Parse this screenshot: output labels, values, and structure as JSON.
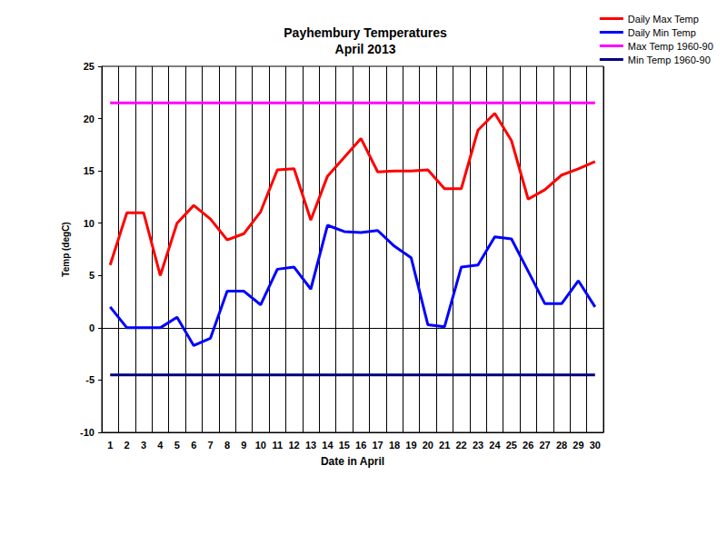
{
  "chart_data": {
    "type": "line",
    "title": "Payhembury Temperatures",
    "subtitle": "April 2013",
    "x_label": "Date in April",
    "y_label": "Temp (degC)",
    "categories": [
      "1",
      "2",
      "3",
      "4",
      "5",
      "6",
      "7",
      "8",
      "9",
      "10",
      "11",
      "12",
      "13",
      "14",
      "15",
      "16",
      "17",
      "18",
      "19",
      "20",
      "21",
      "22",
      "23",
      "24",
      "25",
      "26",
      "27",
      "28",
      "29",
      "30"
    ],
    "series": [
      {
        "name": "Daily Max Temp",
        "color": "#ff0000",
        "values": [
          6.0,
          11.0,
          11.0,
          5.0,
          10.0,
          11.7,
          10.4,
          8.4,
          9.0,
          11.1,
          15.1,
          15.2,
          10.3,
          14.5,
          16.3,
          18.1,
          14.9,
          15.0,
          15.0,
          15.1,
          13.3,
          13.3,
          18.9,
          20.5,
          17.9,
          12.3,
          13.2,
          14.6,
          15.2,
          15.9
        ]
      },
      {
        "name": "Daily Min Temp",
        "color": "#0000ff",
        "values": [
          2.0,
          0.0,
          0.0,
          0.0,
          1.0,
          -1.7,
          -1.0,
          3.5,
          3.5,
          2.2,
          5.6,
          5.8,
          3.7,
          9.8,
          9.2,
          9.1,
          9.3,
          7.8,
          6.7,
          0.3,
          0.1,
          5.8,
          6.0,
          8.7,
          8.5,
          5.4,
          2.3,
          2.3,
          4.5,
          2.0
        ]
      },
      {
        "name": "Max Temp 1960-90",
        "color": "#ff00ff",
        "values": [
          21.5,
          21.5,
          21.5,
          21.5,
          21.5,
          21.5,
          21.5,
          21.5,
          21.5,
          21.5,
          21.5,
          21.5,
          21.5,
          21.5,
          21.5,
          21.5,
          21.5,
          21.5,
          21.5,
          21.5,
          21.5,
          21.5,
          21.5,
          21.5,
          21.5,
          21.5,
          21.5,
          21.5,
          21.5,
          21.5
        ]
      },
      {
        "name": "Min Temp 1960-90",
        "color": "#000080",
        "values": [
          -4.5,
          -4.5,
          -4.5,
          -4.5,
          -4.5,
          -4.5,
          -4.5,
          -4.5,
          -4.5,
          -4.5,
          -4.5,
          -4.5,
          -4.5,
          -4.5,
          -4.5,
          -4.5,
          -4.5,
          -4.5,
          -4.5,
          -4.5,
          -4.5,
          -4.5,
          -4.5,
          -4.5,
          -4.5,
          -4.5,
          -4.5,
          -4.5,
          -4.5,
          -4.5
        ]
      }
    ],
    "ylim": [
      -10,
      25
    ],
    "yticks": [
      -10,
      -5,
      0,
      5,
      10,
      15,
      20,
      25
    ],
    "grid": true,
    "legend": "top-right",
    "marker": "none"
  }
}
